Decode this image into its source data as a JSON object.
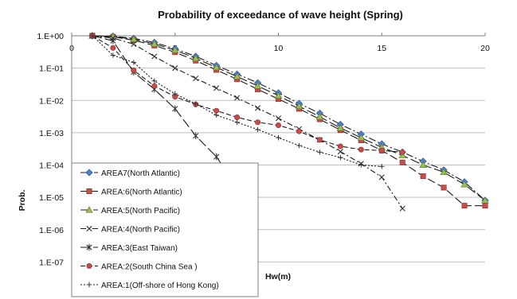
{
  "chart_data": {
    "type": "line",
    "title": "Probability of exceedance of wave height (Spring)",
    "xlabel": "Hw(m)",
    "ylabel": "Prob.",
    "xlim": [
      0,
      20
    ],
    "ylim": [
      1e-08,
      1
    ],
    "y_scale": "log",
    "grid": "horizontal",
    "legend_position": "bottom-left",
    "x_ticks": [
      0,
      5,
      10,
      15,
      20
    ],
    "y_tick_labels": [
      "1.E+00",
      "1.E-01",
      "1.E-02",
      "1.E-03",
      "1.E-04",
      "1.E-05",
      "1.E-06",
      "1.E-07"
    ],
    "y_tick_values": [
      1,
      0.1,
      0.01,
      0.001,
      0.0001,
      1e-05,
      1e-06,
      1e-07
    ],
    "series": [
      {
        "name": "AREA7(North Atlantic)",
        "marker": "diamond",
        "color": "#4f81bd",
        "dash": "9,3,2,3",
        "x": [
          1,
          2,
          3,
          4,
          5,
          6,
          7,
          8,
          9,
          10,
          11,
          12,
          13,
          14,
          15,
          16,
          17,
          18,
          19,
          20
        ],
        "y": [
          1.0,
          0.97,
          0.83,
          0.62,
          0.4,
          0.23,
          0.12,
          0.065,
          0.035,
          0.017,
          0.008,
          0.004,
          0.0018,
          0.0009,
          0.00045,
          0.00025,
          0.00013,
          7e-05,
          3e-05,
          8e-06
        ]
      },
      {
        "name": "AREA:6(North Atlantic)",
        "marker": "square",
        "color": "#c0504d",
        "dash": "10,4",
        "x": [
          1,
          2,
          3,
          4,
          5,
          6,
          7,
          8,
          9,
          10,
          11,
          12,
          13,
          14,
          15,
          16,
          17,
          18,
          19,
          20
        ],
        "y": [
          1.0,
          0.93,
          0.73,
          0.5,
          0.31,
          0.17,
          0.088,
          0.045,
          0.022,
          0.011,
          0.0055,
          0.0026,
          0.0012,
          0.00058,
          0.00028,
          0.00012,
          4.5e-05,
          2e-05,
          5.5e-06,
          5.5e-06
        ]
      },
      {
        "name": "AREA:5(North Pacific)",
        "marker": "triangle",
        "color": "#9bbb59",
        "dash": "12,4",
        "x": [
          1,
          2,
          3,
          4,
          5,
          6,
          7,
          8,
          9,
          10,
          11,
          12,
          13,
          14,
          15,
          16,
          17,
          18,
          19,
          20
        ],
        "y": [
          1.0,
          0.95,
          0.78,
          0.56,
          0.36,
          0.2,
          0.105,
          0.055,
          0.028,
          0.014,
          0.0066,
          0.0031,
          0.0014,
          0.0007,
          0.00035,
          0.0002,
          0.0001,
          6e-05,
          2.5e-05,
          8e-06
        ]
      },
      {
        "name": "AREA:4(North Pacific)",
        "marker": "x",
        "color": "#8064a2",
        "dash": "7,3,2,3",
        "x": [
          1,
          2,
          3,
          4,
          5,
          6,
          7,
          8,
          9,
          10,
          11,
          12,
          13,
          14,
          15,
          16
        ],
        "y": [
          1.0,
          0.85,
          0.55,
          0.23,
          0.1,
          0.048,
          0.024,
          0.012,
          0.0058,
          0.0028,
          0.0013,
          0.0006,
          0.00026,
          0.00011,
          4.2e-05,
          4.5e-06
        ]
      },
      {
        "name": "AREA:3(East Taiwan)",
        "marker": "star",
        "color": "#4bacc6",
        "dash": "12,4",
        "x": [
          1,
          2,
          3,
          4,
          5,
          6,
          7,
          8
        ],
        "y": [
          1.0,
          0.7,
          0.075,
          0.022,
          0.0055,
          0.0008,
          0.00018,
          2.1e-05
        ]
      },
      {
        "name": "AREA:2(South China Sea )",
        "marker": "circle",
        "color": "#c0504d",
        "dash": "6,3",
        "x": [
          1,
          2,
          3,
          4,
          5,
          6,
          7,
          8,
          9,
          10,
          11,
          12,
          13,
          14,
          15,
          16
        ],
        "y": [
          1.0,
          0.42,
          0.085,
          0.028,
          0.013,
          0.0075,
          0.0048,
          0.003,
          0.0021,
          0.0017,
          0.0011,
          0.0006,
          0.00038,
          0.0003,
          0.00028,
          0.00025
        ]
      },
      {
        "name": "AREA:1(Off-shore of Hong Kong)",
        "marker": "plus",
        "color": "#555555",
        "dash": "2,2",
        "x": [
          1,
          2,
          3,
          4,
          5,
          6,
          7,
          8,
          9,
          10,
          11,
          12,
          13,
          14,
          15
        ],
        "y": [
          1.0,
          0.25,
          0.15,
          0.04,
          0.016,
          0.0078,
          0.0035,
          0.0021,
          0.00125,
          0.0007,
          0.0004,
          0.00025,
          0.00017,
          0.0001,
          9e-05
        ]
      }
    ]
  }
}
